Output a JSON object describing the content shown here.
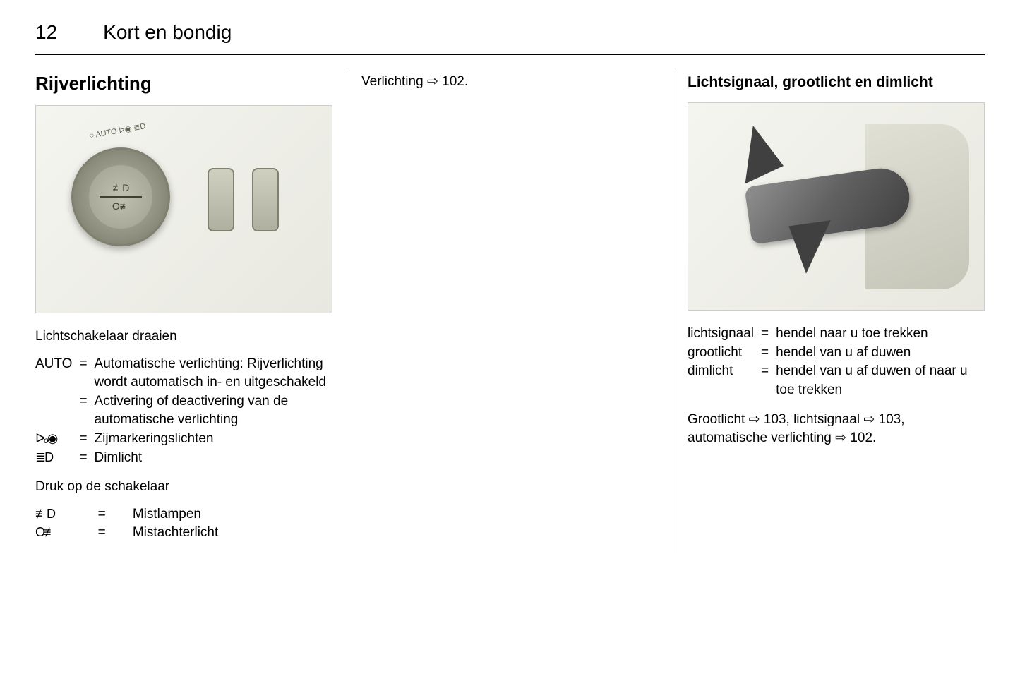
{
  "page_number": "12",
  "section_title": "Kort en bondig",
  "column1": {
    "heading": "Rijverlichting",
    "subtext1": "Lichtschakelaar draaien",
    "definitions1": [
      {
        "term": "AUTO",
        "desc": "Automatische verlichting: Rijverlichting wordt automatisch in- en uitgeschakeld"
      },
      {
        "term": "",
        "desc": "Activering of deactivering van de automatische verlichting"
      },
      {
        "term": "sidelights",
        "desc": "Zijmarkeringslichten"
      },
      {
        "term": "dimlight",
        "desc": "Dimlicht"
      }
    ],
    "subtext2": "Druk op de schakelaar",
    "definitions2": [
      {
        "term": "foglight-front",
        "desc": "Mistlampen"
      },
      {
        "term": "foglight-rear",
        "desc": "Mistachterlicht"
      }
    ]
  },
  "column2": {
    "ref_text": "Verlichting",
    "ref_page": "102"
  },
  "column3": {
    "heading": "Lichtsignaal, grootlicht en dimlicht",
    "definitions": [
      {
        "term": "lichtsignaal",
        "desc": "hendel naar u toe trekken"
      },
      {
        "term": "grootlicht",
        "desc": "hendel van u af duwen"
      },
      {
        "term": "dimlicht",
        "desc": "hendel van u af duwen of naar u toe trekken"
      }
    ],
    "footer_refs": [
      {
        "label": "Grootlicht",
        "page": "103"
      },
      {
        "label": "lichtsignaal",
        "page": "103"
      },
      {
        "label": "automatische verlichting",
        "page": "102"
      }
    ]
  },
  "symbols": {
    "sidelights": "ᐅₒ◉",
    "dimlight": "≣D",
    "foglight_front": "≢D",
    "foglight_rear": "O≢",
    "ref_arrow": "⇨"
  }
}
